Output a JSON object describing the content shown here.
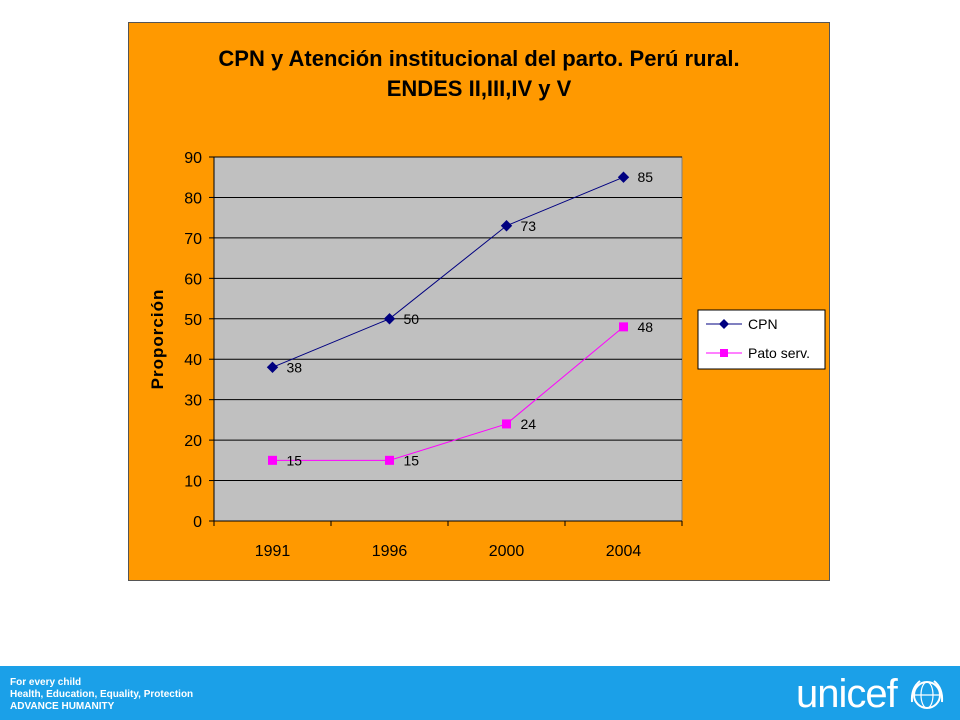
{
  "chart_data": {
    "type": "line",
    "title": [
      "CPN y Atención institucional del parto. Perú rural.",
      "ENDES II,III,IV y V"
    ],
    "xlabel": "",
    "ylabel": "Proporción",
    "categories": [
      "1991",
      "1996",
      "2000",
      "2004"
    ],
    "ylim": [
      0,
      90
    ],
    "yticks": [
      "0",
      "10",
      "20",
      "30",
      "40",
      "50",
      "60",
      "70",
      "80",
      "90"
    ],
    "grid": true,
    "legend": "right",
    "series": [
      {
        "name": "CPN",
        "values": [
          38,
          50,
          73,
          85
        ],
        "color": "#000080",
        "marker": "diamond"
      },
      {
        "name": "Pato serv.",
        "values": [
          15,
          15,
          24,
          48
        ],
        "color": "#ff00ff",
        "marker": "square"
      }
    ],
    "colors": {
      "panel": "#ff9900",
      "plot_area": "#c0c0c0",
      "gridline": "#000000"
    }
  },
  "footer": {
    "line1": "For every child",
    "line2": "Health, Education, Equality, Protection",
    "line3": "ADVANCE HUMANITY",
    "brand": "unicef",
    "bar_color": "#1ba0e8"
  }
}
